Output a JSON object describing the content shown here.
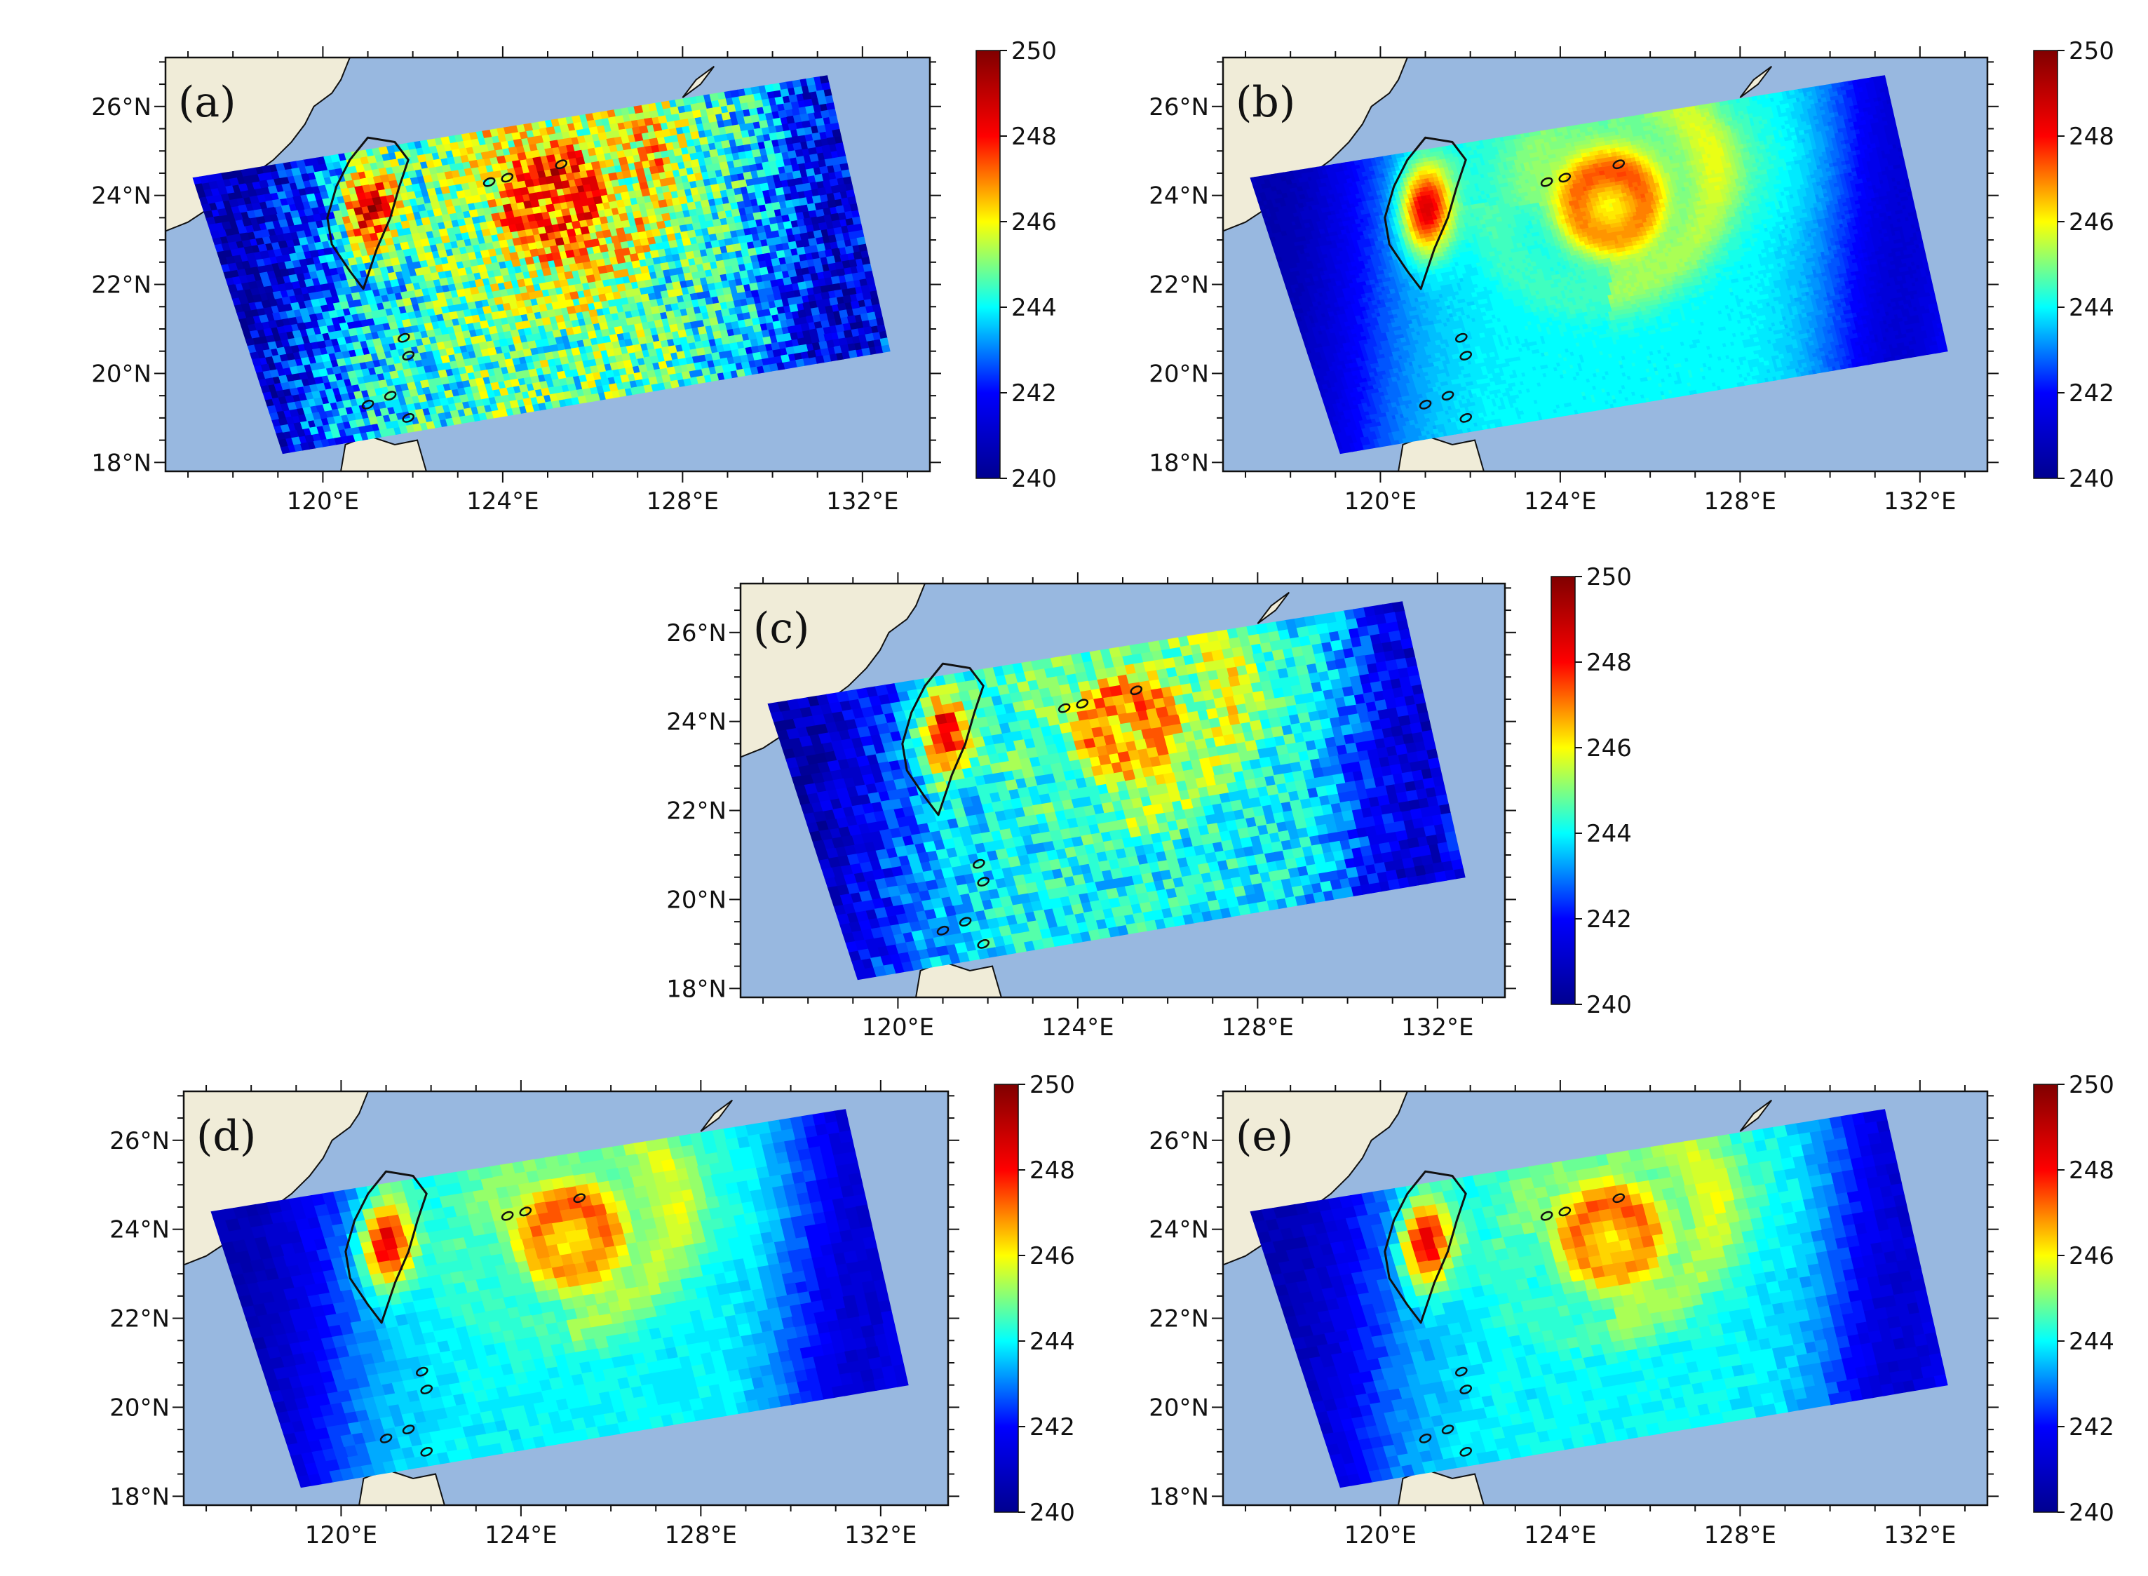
{
  "figure": {
    "colors": {
      "sea": "#98b8e0",
      "land": "#f0ecd8",
      "coast": "#111111",
      "colormap": [
        "#00008f",
        "#0000ff",
        "#00ffff",
        "#ffff00",
        "#ff0000",
        "#800000"
      ]
    },
    "extent": {
      "lon": [
        116.5,
        133.5
      ],
      "lat": [
        17.8,
        27.1
      ]
    },
    "swath_corners_lonlat": [
      [
        117.1,
        24.4
      ],
      [
        131.2,
        26.7
      ],
      [
        132.6,
        20.5
      ],
      [
        119.1,
        18.2
      ]
    ],
    "xticks": [
      120,
      124,
      128,
      132
    ],
    "yticks": [
      18,
      20,
      22,
      24,
      26
    ],
    "colorbar": {
      "min": 240,
      "max": 250,
      "ticks": [
        240,
        242,
        244,
        246,
        248,
        250
      ]
    }
  },
  "panels": [
    {
      "label": "(a)",
      "pixel_size": 10,
      "noise": 1.6,
      "xtick_labels": [
        "120°E",
        "124°E",
        "128°E",
        "132°E"
      ],
      "ytick_labels": [
        "18°N",
        "20°N",
        "22°N",
        "24°N",
        "26°N"
      ],
      "colorbar_labels": [
        "240",
        "242",
        "244",
        "246",
        "248",
        "250"
      ]
    },
    {
      "label": "(b)",
      "pixel_size": 6,
      "noise": 0.1,
      "xtick_labels": [
        "120°E",
        "124°E",
        "128°E",
        "132°E"
      ],
      "ytick_labels": [
        "18°N",
        "20°N",
        "22°N",
        "24°N",
        "26°N"
      ],
      "colorbar_labels": [
        "240",
        "242",
        "244",
        "246",
        "248",
        "250"
      ]
    },
    {
      "label": "(c)",
      "pixel_size": 14,
      "noise": 0.9,
      "xtick_labels": [
        "120°E",
        "124°E",
        "128°E",
        "132°E"
      ],
      "ytick_labels": [
        "18°N",
        "20°N",
        "22°N",
        "24°N",
        "26°N"
      ],
      "colorbar_labels": [
        "240",
        "242",
        "244",
        "246",
        "248",
        "250"
      ]
    },
    {
      "label": "(d)",
      "pixel_size": 16,
      "noise": 0.25,
      "xtick_labels": [
        "120°E",
        "124°E",
        "128°E",
        "132°E"
      ],
      "ytick_labels": [
        "18°N",
        "20°N",
        "22°N",
        "24°N",
        "26°N"
      ],
      "colorbar_labels": [
        "240",
        "242",
        "244",
        "246",
        "248",
        "250"
      ]
    },
    {
      "label": "(e)",
      "pixel_size": 16,
      "noise": 0.25,
      "xtick_labels": [
        "120°E",
        "124°E",
        "128°E",
        "132°E"
      ],
      "ytick_labels": [
        "18°N",
        "20°N",
        "22°N",
        "24°N",
        "26°N"
      ],
      "colorbar_labels": [
        "240",
        "242",
        "244",
        "246",
        "248",
        "250"
      ]
    }
  ]
}
